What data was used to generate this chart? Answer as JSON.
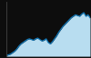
{
  "x": [
    0,
    1,
    2,
    3,
    4,
    5,
    6,
    7,
    8,
    9,
    10,
    11,
    12,
    13,
    14,
    15,
    16,
    17,
    18,
    19,
    20,
    21,
    22,
    23,
    24,
    25,
    26,
    27,
    28,
    29,
    30,
    31,
    32,
    33,
    34,
    35,
    36,
    37,
    38,
    39,
    40
  ],
  "y": [
    1,
    2,
    3,
    5,
    7,
    10,
    14,
    17,
    19,
    21,
    23,
    24,
    23,
    22,
    24,
    25,
    23,
    21,
    22,
    24,
    19,
    17,
    20,
    24,
    28,
    33,
    37,
    41,
    44,
    47,
    50,
    53,
    55,
    57,
    56,
    55,
    58,
    60,
    55,
    57,
    53
  ],
  "line_color": "#1176b5",
  "fill_color": "#b8ddf0",
  "background_color": "#0d0d0d",
  "ylim": [
    0,
    75
  ],
  "xlim": [
    0,
    40
  ]
}
